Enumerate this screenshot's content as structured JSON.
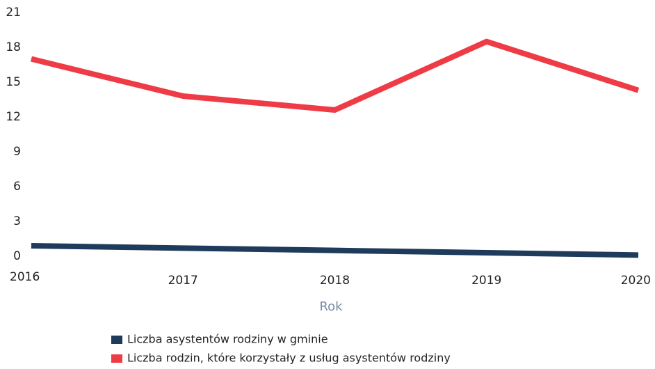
{
  "chart_data": {
    "type": "line",
    "x_label": "Rok",
    "categories": [
      "2016",
      "2017",
      "2018",
      "2019",
      "2020"
    ],
    "series": [
      {
        "name": "Liczba asystentów rodziny w gminie",
        "color": "#1f3b5c",
        "values": [
          0.9,
          0.7,
          0.5,
          0.3,
          0.1
        ]
      },
      {
        "name": "Liczba rodzin, które korzystały z usług asystentów rodziny",
        "color": "#ee3b45",
        "values": [
          17,
          13.8,
          12.6,
          18.5,
          14.3
        ]
      }
    ],
    "ylim": [
      0,
      21
    ],
    "yticks": [
      0,
      3,
      6,
      9,
      12,
      15,
      18,
      21
    ],
    "grid": false,
    "legend": "bottom"
  }
}
